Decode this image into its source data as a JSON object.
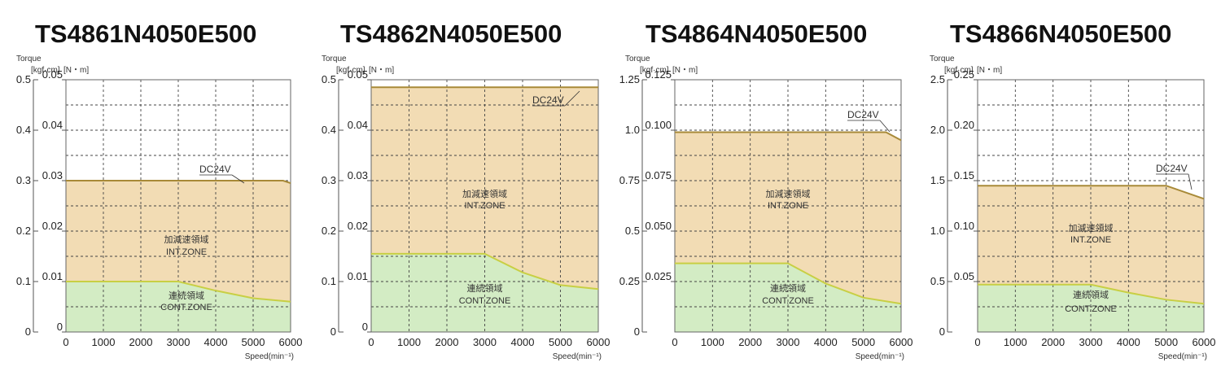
{
  "colors": {
    "int_zone_fill": "#f2dcb4",
    "cont_zone_fill": "#d3ecc4",
    "int_line": "#a88a38",
    "cont_line": "#c8cf44",
    "grid": "#444444",
    "frame": "#666666"
  },
  "chart_data": [
    {
      "type": "area",
      "title": "TS4861N4050E500",
      "ylabel": "Torque",
      "yunit_left": "[kgf·cm]",
      "yunit_right": "[N・m]",
      "xlabel": "Speed(min⁻¹)",
      "xlim": [
        0,
        6000
      ],
      "x_ticks": [
        "0",
        "1000",
        "2000",
        "3000",
        "4000",
        "5000",
        "6000"
      ],
      "ylim": [
        0,
        0.05
      ],
      "y_ticks_nm": [
        "0",
        "0.01",
        "0.02",
        "0.03",
        "0.04",
        "0.05"
      ],
      "y_ticks_nm_values": [
        0,
        0.01,
        0.02,
        0.03,
        0.04,
        0.05
      ],
      "y_ticks_kgf": [
        "0",
        "0.1",
        "0.2",
        "0.3",
        "0.4",
        "0.5"
      ],
      "y_ticks_kgf_values": [
        0,
        0.01,
        0.02,
        0.03,
        0.04,
        0.05
      ],
      "series": [
        {
          "name": "INT.ZONE",
          "x": [
            0,
            5800,
            6000
          ],
          "y": [
            0.03,
            0.03,
            0.0295
          ]
        },
        {
          "name": "CONT.ZONE",
          "x": [
            0,
            3000,
            4000,
            5000,
            6000
          ],
          "y": [
            0.01,
            0.01,
            0.0082,
            0.0067,
            0.006
          ]
        }
      ],
      "annotations": {
        "dc_label": "DC24V",
        "int_zone_jp": "加減速領域",
        "int_zone_en": "INT.ZONE",
        "cont_zone_jp": "連続領域",
        "cont_zone_en": "CONT.ZONE"
      }
    },
    {
      "type": "area",
      "title": "TS4862N4050E500",
      "ylabel": "Torque",
      "yunit_left": "[kgf·cm]",
      "yunit_right": "[N・m]",
      "xlabel": "Speed(min⁻¹)",
      "xlim": [
        0,
        6000
      ],
      "x_ticks": [
        "0",
        "1000",
        "2000",
        "3000",
        "4000",
        "5000",
        "6000"
      ],
      "ylim": [
        0,
        0.05
      ],
      "y_ticks_nm": [
        "0",
        "0.01",
        "0.02",
        "0.03",
        "0.04",
        "0.05"
      ],
      "y_ticks_nm_values": [
        0,
        0.01,
        0.02,
        0.03,
        0.04,
        0.05
      ],
      "y_ticks_kgf": [
        "0",
        "0.1",
        "0.2",
        "0.3",
        "0.4",
        "0.5"
      ],
      "y_ticks_kgf_values": [
        0,
        0.01,
        0.02,
        0.03,
        0.04,
        0.05
      ],
      "series": [
        {
          "name": "INT.ZONE",
          "x": [
            0,
            6000
          ],
          "y": [
            0.0485,
            0.0485
          ]
        },
        {
          "name": "CONT.ZONE",
          "x": [
            0,
            3000,
            4000,
            5000,
            6000
          ],
          "y": [
            0.0155,
            0.0155,
            0.0118,
            0.0093,
            0.0085
          ]
        }
      ],
      "annotations": {
        "dc_label": "DC24V",
        "int_zone_jp": "加減速領域",
        "int_zone_en": "INT.ZONE",
        "cont_zone_jp": "連続領域",
        "cont_zone_en": "CONT.ZONE"
      }
    },
    {
      "type": "area",
      "title": "TS4864N4050E500",
      "ylabel": "Torque",
      "yunit_left": "[kgf·cm]",
      "yunit_right": "[N・m]",
      "xlabel": "Speed(min⁻¹)",
      "xlim": [
        0,
        6000
      ],
      "x_ticks": [
        "0",
        "1000",
        "2000",
        "3000",
        "4000",
        "5000",
        "6000"
      ],
      "ylim": [
        0,
        0.125
      ],
      "y_ticks_nm": [
        "0.025",
        "0.050",
        "0.075",
        "0.100",
        "0.125"
      ],
      "y_ticks_nm_values": [
        0.025,
        0.05,
        0.075,
        0.1,
        0.125
      ],
      "y_ticks_kgf": [
        "0",
        "0.25",
        "0.5",
        "0.75",
        "1.0",
        "1.25"
      ],
      "y_ticks_kgf_values": [
        0,
        0.025,
        0.05,
        0.075,
        0.1,
        0.125
      ],
      "series": [
        {
          "name": "INT.ZONE",
          "x": [
            0,
            5600,
            6000
          ],
          "y": [
            0.099,
            0.099,
            0.095
          ]
        },
        {
          "name": "CONT.ZONE",
          "x": [
            0,
            3000,
            4000,
            5000,
            6000
          ],
          "y": [
            0.034,
            0.034,
            0.024,
            0.017,
            0.014
          ]
        }
      ],
      "annotations": {
        "dc_label": "DC24V",
        "int_zone_jp": "加減速領域",
        "int_zone_en": "INT.ZONE",
        "cont_zone_jp": "連続領域",
        "cont_zone_en": "CONT.ZONE"
      }
    },
    {
      "type": "area",
      "title": "TS4866N4050E500",
      "ylabel": "Torque",
      "yunit_left": "[kgf·cm]",
      "yunit_right": "[N・m]",
      "xlabel": "Speed(min⁻¹)",
      "xlim": [
        0,
        6000
      ],
      "x_ticks": [
        "0",
        "1000",
        "2000",
        "3000",
        "4000",
        "5000",
        "6000"
      ],
      "ylim": [
        0,
        0.25
      ],
      "y_ticks_nm": [
        "0.05",
        "0.10",
        "0.15",
        "0.20",
        "0.25"
      ],
      "y_ticks_nm_values": [
        0.05,
        0.1,
        0.15,
        0.2,
        0.25
      ],
      "y_ticks_kgf": [
        "0",
        "0.5",
        "1.0",
        "1.5",
        "2.0",
        "2.5"
      ],
      "y_ticks_kgf_values": [
        0,
        0.05,
        0.1,
        0.15,
        0.2,
        0.25
      ],
      "series": [
        {
          "name": "INT.ZONE",
          "x": [
            0,
            5000,
            6000
          ],
          "y": [
            0.145,
            0.145,
            0.132
          ]
        },
        {
          "name": "CONT.ZONE",
          "x": [
            0,
            3000,
            4000,
            5000,
            6000
          ],
          "y": [
            0.047,
            0.047,
            0.039,
            0.032,
            0.028
          ]
        }
      ],
      "annotations": {
        "dc_label": "DC24V",
        "int_zone_jp": "加減速領域",
        "int_zone_en": "INT.ZONE",
        "cont_zone_jp": "連続領域",
        "cont_zone_en": "CONT.ZONE"
      }
    }
  ]
}
